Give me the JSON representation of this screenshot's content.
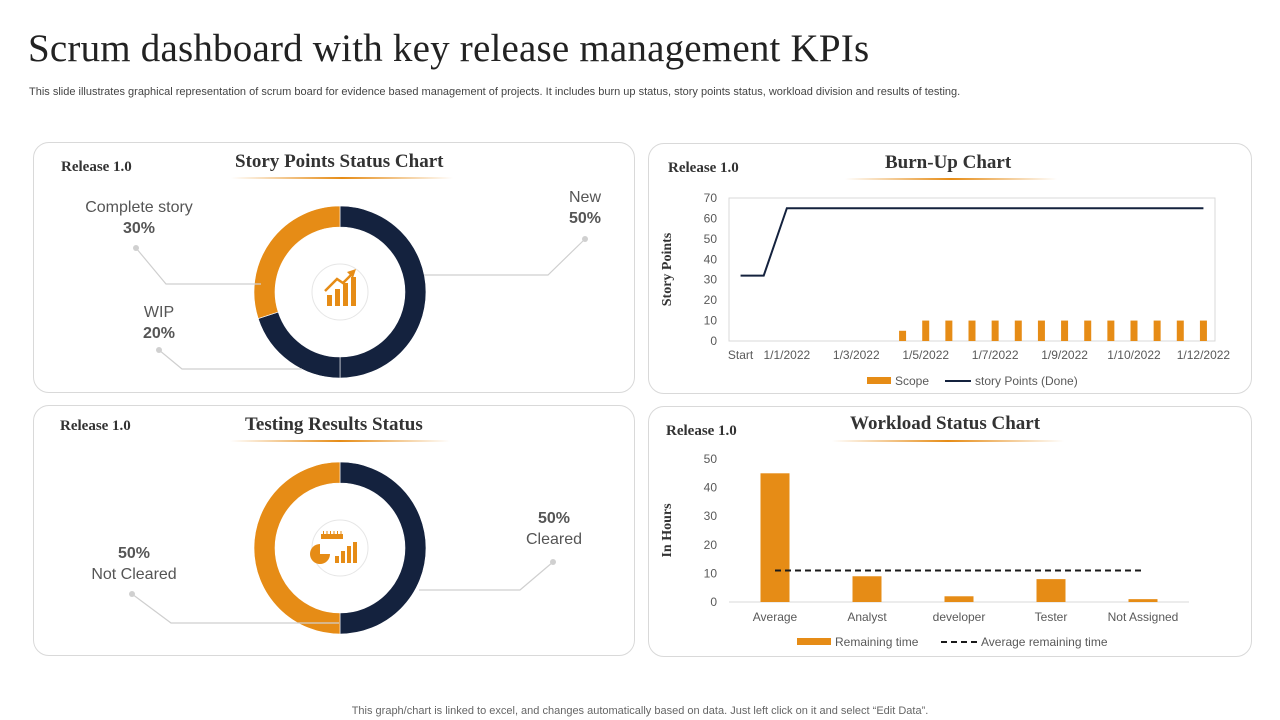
{
  "header": {
    "title": "Scrum dashboard with key release management KPIs",
    "subtitle": "This slide illustrates graphical representation of scrum board for evidence based management of projects. It includes burn up status, story points status, workload division and results of testing."
  },
  "footer": "This graph/chart is linked to excel,  and changes automatically based on data. Just left click on it and select “Edit Data”.",
  "colors": {
    "orange": "#E68C16",
    "navy": "#14223E"
  },
  "panels": {
    "story": {
      "release": "Release 1.0",
      "title": "Story Points Status Chart",
      "icon": "growth-chart-icon"
    },
    "burnup": {
      "release": "Release 1.0",
      "title": "Burn-Up Chart"
    },
    "testing": {
      "release": "Release 1.0",
      "title": "Testing Results Status",
      "icon": "ruler-chart-icon"
    },
    "workload": {
      "release": "Release 1.0",
      "title": "Workload Status Chart"
    }
  },
  "chart_data": [
    {
      "id": "story",
      "type": "pie",
      "title": "Story Points Status Chart",
      "slices": [
        {
          "name": "New",
          "value": 50,
          "label": "50%",
          "color": "#14223E"
        },
        {
          "name": "WIP",
          "value": 20,
          "label": "20%",
          "color": "#14223E"
        },
        {
          "name": "Complete story",
          "value": 30,
          "label": "30%",
          "color": "#E68C16"
        }
      ]
    },
    {
      "id": "burnup",
      "type": "line",
      "title": "Burn-Up Chart",
      "ylabel": "Story Points",
      "ylim": [
        0,
        70
      ],
      "yticks": [
        0,
        10,
        20,
        30,
        40,
        50,
        60,
        70
      ],
      "tick_labels": [
        "Start",
        "1/1/2022",
        "1/3/2022",
        "1/5/2022",
        "1/7/2022",
        "1/9/2022",
        "1/10/2022",
        "1/12/2022"
      ],
      "tick_positions": [
        0,
        2,
        5,
        8,
        11,
        14,
        17,
        20
      ],
      "series": [
        {
          "name": "Scope",
          "kind": "bar",
          "values": [
            0,
            0,
            0,
            0,
            0,
            0,
            0,
            5,
            10,
            10,
            10,
            10,
            10,
            10,
            10,
            10,
            10,
            10,
            10,
            10,
            10
          ]
        },
        {
          "name": "story Points (Done)",
          "kind": "line",
          "values": [
            32,
            32,
            65,
            65,
            65,
            65,
            65,
            65,
            65,
            65,
            65,
            65,
            65,
            65,
            65,
            65,
            65,
            65,
            65,
            65,
            65
          ]
        }
      ],
      "legend": [
        "Scope",
        "story Points (Done)"
      ]
    },
    {
      "id": "testing",
      "type": "pie",
      "title": "Testing Results Status",
      "slices": [
        {
          "name": "Cleared",
          "value": 50,
          "label": "50%",
          "color": "#14223E"
        },
        {
          "name": "Not Cleared",
          "value": 50,
          "label": "50%",
          "color": "#E68C16"
        }
      ]
    },
    {
      "id": "workload",
      "type": "bar",
      "title": "Workload Status Chart",
      "ylabel": "In Hours",
      "ylim": [
        0,
        50
      ],
      "yticks": [
        0,
        10,
        20,
        30,
        40,
        50
      ],
      "categories": [
        "Average",
        "Analyst",
        "developer",
        "Tester",
        "Not Assigned"
      ],
      "series": [
        {
          "name": "Remaining time",
          "kind": "bar",
          "values": [
            45,
            9,
            2,
            8,
            1
          ]
        },
        {
          "name": "Average remaining time",
          "kind": "dashed-line",
          "value": 11
        }
      ],
      "legend": [
        "Remaining time",
        "Average remaining time"
      ]
    }
  ]
}
